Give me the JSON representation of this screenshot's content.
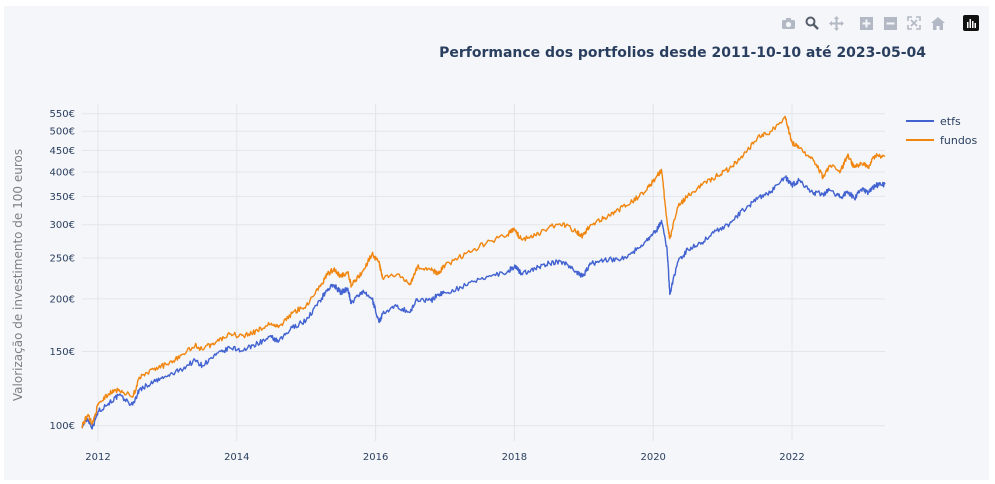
{
  "toolbar": {
    "icons": [
      "camera-icon",
      "zoom-icon",
      "pan-icon",
      "zoom-in-icon",
      "zoom-out-icon",
      "autoscale-icon",
      "home-icon",
      "plotly-logo-icon"
    ]
  },
  "chart_data": {
    "type": "line",
    "title": "Performance dos portfolios desde 2011-10-10 até 2023-05-04",
    "ylabel": "Valorização de investimento de 100 euros",
    "xlabel": "",
    "yscale": "log",
    "ylim": [
      92,
      580
    ],
    "xlim": [
      2011.77,
      2023.34
    ],
    "y_ticks": [
      100,
      150,
      200,
      250,
      300,
      350,
      400,
      450,
      500,
      550
    ],
    "y_tick_labels": [
      "100€",
      "150€",
      "200€",
      "250€",
      "300€",
      "350€",
      "400€",
      "450€",
      "500€",
      "550€"
    ],
    "x_ticks": [
      2012,
      2014,
      2016,
      2018,
      2020,
      2022
    ],
    "x_tick_labels": [
      "2012",
      "2014",
      "2016",
      "2018",
      "2020",
      "2022"
    ],
    "grid": true,
    "legend_position": "top-right",
    "series": [
      {
        "name": "etfs",
        "color": "#4162d0",
        "x": [
          2011.77,
          2011.85,
          2011.92,
          2012.0,
          2012.15,
          2012.3,
          2012.5,
          2012.6,
          2012.8,
          2013.0,
          2013.2,
          2013.4,
          2013.5,
          2013.7,
          2013.9,
          2014.1,
          2014.3,
          2014.5,
          2014.6,
          2014.8,
          2015.0,
          2015.2,
          2015.3,
          2015.4,
          2015.5,
          2015.6,
          2015.65,
          2015.8,
          2015.95,
          2016.05,
          2016.1,
          2016.3,
          2016.5,
          2016.6,
          2016.8,
          2016.9,
          2017.0,
          2017.3,
          2017.6,
          2017.9,
          2018.0,
          2018.1,
          2018.3,
          2018.5,
          2018.7,
          2018.9,
          2018.98,
          2019.1,
          2019.3,
          2019.5,
          2019.7,
          2019.9,
          2020.05,
          2020.12,
          2020.2,
          2020.24,
          2020.35,
          2020.5,
          2020.7,
          2020.9,
          2021.1,
          2021.3,
          2021.5,
          2021.7,
          2021.9,
          2022.0,
          2022.1,
          2022.3,
          2022.45,
          2022.55,
          2022.7,
          2022.8,
          2022.9,
          2023.0,
          2023.1,
          2023.2,
          2023.34
        ],
        "y": [
          100,
          104,
          99,
          108,
          113,
          118,
          112,
          122,
          127,
          131,
          136,
          143,
          139,
          147,
          153,
          151,
          157,
          162,
          158,
          171,
          178,
          198,
          210,
          216,
          207,
          212,
          195,
          208,
          200,
          176,
          184,
          192,
          186,
          200,
          198,
          205,
          207,
          215,
          226,
          232,
          239,
          230,
          236,
          243,
          245,
          232,
          226,
          242,
          248,
          248,
          257,
          275,
          291,
          307,
          262,
          205,
          244,
          262,
          272,
          290,
          301,
          325,
          345,
          360,
          389,
          372,
          382,
          357,
          355,
          362,
          348,
          360,
          346,
          364,
          357,
          372,
          374
        ]
      },
      {
        "name": "fundos",
        "color": "#f0860f",
        "x": [
          2011.77,
          2011.85,
          2011.92,
          2012.0,
          2012.15,
          2012.3,
          2012.5,
          2012.6,
          2012.8,
          2013.0,
          2013.2,
          2013.4,
          2013.5,
          2013.7,
          2013.9,
          2014.1,
          2014.3,
          2014.5,
          2014.6,
          2014.8,
          2015.0,
          2015.2,
          2015.3,
          2015.4,
          2015.5,
          2015.6,
          2015.65,
          2015.8,
          2015.95,
          2016.05,
          2016.1,
          2016.3,
          2016.5,
          2016.6,
          2016.8,
          2016.9,
          2017.0,
          2017.3,
          2017.6,
          2017.9,
          2018.0,
          2018.1,
          2018.3,
          2018.5,
          2018.7,
          2018.9,
          2018.98,
          2019.1,
          2019.3,
          2019.5,
          2019.7,
          2019.9,
          2020.05,
          2020.12,
          2020.2,
          2020.24,
          2020.35,
          2020.5,
          2020.7,
          2020.9,
          2021.1,
          2021.3,
          2021.5,
          2021.7,
          2021.9,
          2022.0,
          2022.1,
          2022.3,
          2022.45,
          2022.55,
          2022.7,
          2022.8,
          2022.9,
          2023.0,
          2023.1,
          2023.2,
          2023.34
        ],
        "y": [
          100,
          106,
          101,
          112,
          119,
          122,
          117,
          130,
          136,
          140,
          147,
          155,
          152,
          158,
          165,
          163,
          168,
          175,
          171,
          185,
          193,
          214,
          228,
          236,
          226,
          232,
          215,
          230,
          256,
          244,
          224,
          228,
          218,
          238,
          234,
          230,
          240,
          256,
          272,
          284,
          292,
          277,
          283,
          296,
          302,
          288,
          281,
          300,
          312,
          325,
          340,
          362,
          391,
          405,
          305,
          278,
          330,
          352,
          372,
          390,
          408,
          438,
          482,
          500,
          542,
          470,
          455,
          430,
          388,
          415,
          402,
          438,
          410,
          420,
          410,
          438,
          437
        ]
      }
    ]
  }
}
